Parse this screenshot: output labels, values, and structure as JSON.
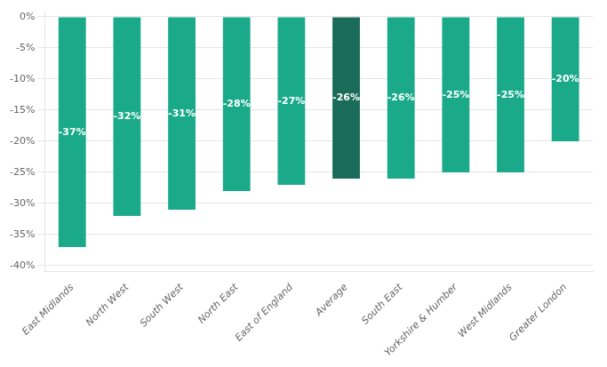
{
  "chart_data": {
    "type": "bar",
    "categories": [
      "East Midlands",
      "North West",
      "South West",
      "North East",
      "East of England",
      "Average",
      "South East",
      "Yorkshire & Humber",
      "West Midlands",
      "Greater London"
    ],
    "values": [
      -37,
      -32,
      -31,
      -28,
      -27,
      -26,
      -26,
      -25,
      -25,
      -20
    ],
    "value_labels": [
      "-37%",
      "-32%",
      "-31%",
      "-28%",
      "-27%",
      "-26%",
      "-26%",
      "-25%",
      "-25%",
      "-20%"
    ],
    "colors": [
      "#1aaa8a",
      "#1aaa8a",
      "#1aaa8a",
      "#1aaa8a",
      "#1aaa8a",
      "#1a6b5a",
      "#1aaa8a",
      "#1aaa8a",
      "#1aaa8a",
      "#1aaa8a"
    ],
    "ylim": [
      -41,
      1
    ],
    "yticks": [
      {
        "value": 0,
        "label": "0%"
      },
      {
        "value": -5,
        "label": "-5%"
      },
      {
        "value": -10,
        "label": "-10%"
      },
      {
        "value": -15,
        "label": "-15%"
      },
      {
        "value": -20,
        "label": "-20%"
      },
      {
        "value": -25,
        "label": "-25%"
      },
      {
        "value": -30,
        "label": "-30%"
      },
      {
        "value": -35,
        "label": "-35%"
      },
      {
        "value": -40,
        "label": "-40%"
      }
    ],
    "grid": true,
    "data_labels": true
  }
}
